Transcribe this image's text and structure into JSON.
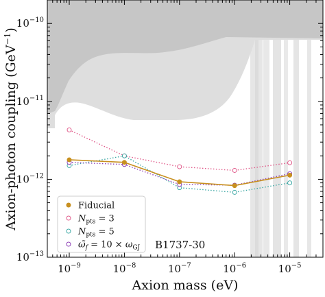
{
  "chart_data": {
    "type": "line",
    "title": "",
    "xlabel": "Axion mass (eV)",
    "ylabel_main": "Axion-photon coupling (GeV",
    "ylabel_sup": "−1",
    "ylabel_close": ")",
    "xscale": "log",
    "yscale": "log",
    "xlim": [
      4e-10,
      4e-05
    ],
    "ylim": [
      1e-13,
      2e-10
    ],
    "x": [
      1e-09,
      1e-08,
      1e-07,
      1e-06,
      1e-05
    ],
    "x_ticks": [
      {
        "value": 1e-09,
        "base": "10",
        "exp": "−9"
      },
      {
        "value": 1e-08,
        "base": "10",
        "exp": "−8"
      },
      {
        "value": 1e-07,
        "base": "10",
        "exp": "−7"
      },
      {
        "value": 1e-06,
        "base": "10",
        "exp": "−6"
      },
      {
        "value": 1e-05,
        "base": "10",
        "exp": "−5"
      }
    ],
    "y_ticks": [
      {
        "value": 1e-13,
        "base": "10",
        "exp": "−13"
      },
      {
        "value": 1e-12,
        "base": "10",
        "exp": "−12"
      },
      {
        "value": 1e-11,
        "base": "10",
        "exp": "−11"
      },
      {
        "value": 1e-10,
        "base": "10",
        "exp": "−10"
      }
    ],
    "series": [
      {
        "name": "Fiducial",
        "color": "#c89020",
        "style": "solid-filled",
        "values": [
          1.78e-12,
          1.65e-12,
          9.3e-13,
          8.3e-13,
          1.13e-12
        ]
      },
      {
        "name": "N_pts = 3",
        "color": "#e05a8a",
        "style": "dotted-open",
        "values": [
          4.3e-12,
          2e-12,
          1.45e-12,
          1.3e-12,
          1.63e-12
        ]
      },
      {
        "name": "N_pts = 5",
        "color": "#3fa9a6",
        "style": "dotted-open",
        "values": [
          1.5e-12,
          2e-12,
          7.8e-13,
          6.8e-13,
          9e-13
        ]
      },
      {
        "name": "ω̃_f = 10 × ω_GJ",
        "color": "#8c3fb5",
        "style": "dotted-open",
        "values": [
          1.65e-12,
          1.55e-12,
          8.6e-13,
          8.4e-13,
          1.18e-12
        ]
      }
    ],
    "legend": {
      "placement": "bottom-left",
      "entries": [
        {
          "parts": [
            {
              "t": "Fiducial"
            }
          ]
        },
        {
          "parts": [
            {
              "t": "N",
              "i": true
            },
            {
              "t": "pts",
              "sub": true
            },
            {
              "t": " = 3"
            }
          ]
        },
        {
          "parts": [
            {
              "t": "N",
              "i": true
            },
            {
              "t": "pts",
              "sub": true
            },
            {
              "t": " = 5"
            }
          ]
        },
        {
          "parts": [
            {
              "t": "ω̃",
              "i": true
            },
            {
              "t": "f",
              "sub": true,
              "i": true
            },
            {
              "t": " = 10 × "
            },
            {
              "t": "ω",
              "i": true
            },
            {
              "t": "GJ",
              "sub": true
            }
          ]
        }
      ]
    },
    "annotation": "B1737-30",
    "exclusion_colors": {
      "dark": "#c6c6c6",
      "light": "#dedede",
      "bands": "#e6e6e6"
    }
  }
}
